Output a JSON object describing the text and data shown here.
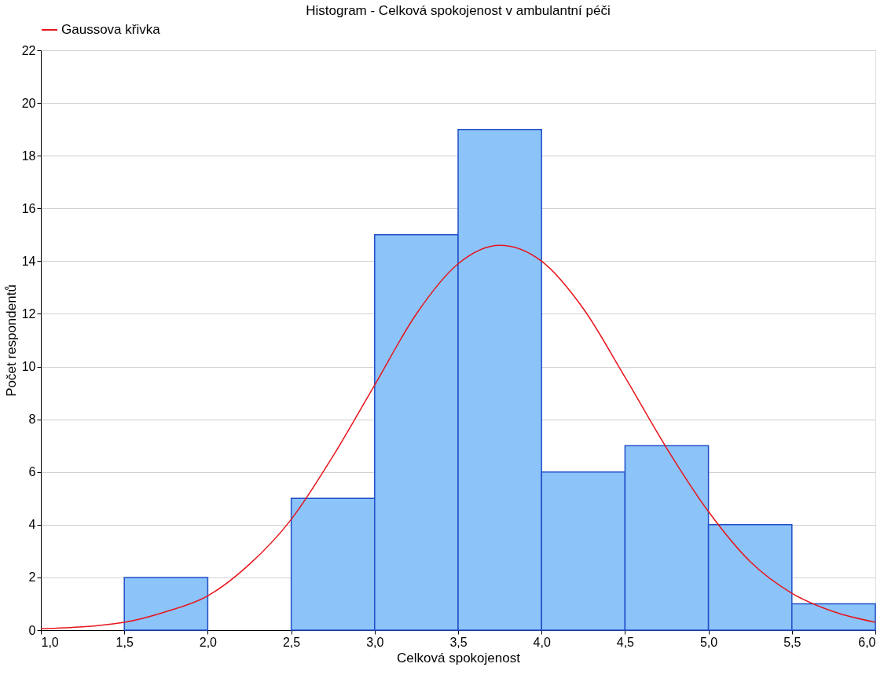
{
  "chart_data": {
    "type": "histogram",
    "title": "Histogram - Celková spokojenost v ambulantní péči",
    "xlabel": "Celková spokojenost",
    "ylabel": "Počet respondentů",
    "bins": [
      1.0,
      1.5,
      2.0,
      2.5,
      3.0,
      3.5,
      4.0,
      4.5,
      5.0,
      5.5,
      6.0
    ],
    "values": [
      0,
      2,
      0,
      5,
      15,
      19,
      6,
      7,
      4,
      1
    ],
    "color": "#8cc3f8",
    "series": [
      {
        "name": "Gaussova křivka",
        "type": "line",
        "color": "#e8141c",
        "x": [
          1.0,
          1.5,
          1.75,
          2.0,
          2.25,
          2.5,
          2.75,
          3.0,
          3.25,
          3.5,
          3.75,
          4.0,
          4.25,
          4.5,
          4.75,
          5.0,
          5.25,
          5.5,
          5.75,
          6.0
        ],
        "values": [
          0.05,
          0.3,
          0.7,
          1.3,
          2.5,
          4.2,
          6.6,
          9.3,
          12.0,
          13.9,
          14.6,
          14.0,
          12.2,
          9.6,
          6.9,
          4.5,
          2.6,
          1.4,
          0.7,
          0.3
        ]
      }
    ],
    "xlim": [
      1.0,
      6.0
    ],
    "xticks": [
      {
        "value": 1.0,
        "label": "1,0"
      },
      {
        "value": 1.5,
        "label": "1,5"
      },
      {
        "value": 2.0,
        "label": "2,0"
      },
      {
        "value": 2.5,
        "label": "2,5"
      },
      {
        "value": 3.0,
        "label": "3,0"
      },
      {
        "value": 3.5,
        "label": "3,5"
      },
      {
        "value": 4.0,
        "label": "4,0"
      },
      {
        "value": 4.5,
        "label": "4,5"
      },
      {
        "value": 5.0,
        "label": "5,0"
      },
      {
        "value": 5.5,
        "label": "5,5"
      },
      {
        "value": 6.0,
        "label": "6,0"
      }
    ],
    "ylim": [
      0,
      22
    ],
    "yticks": [
      0,
      2,
      4,
      6,
      8,
      10,
      12,
      14,
      16,
      18,
      20,
      22
    ],
    "grid": "y",
    "legend": "top",
    "line_style": "solid",
    "marker": "none"
  }
}
